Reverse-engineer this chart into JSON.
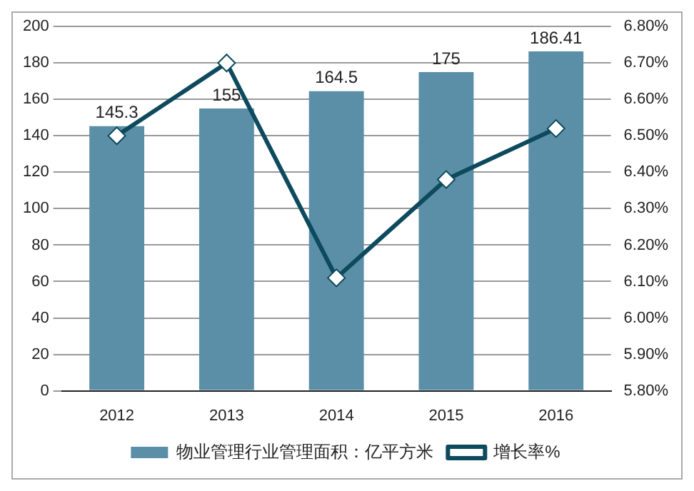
{
  "chart_data": {
    "type": "bar",
    "categories": [
      "2012",
      "2013",
      "2014",
      "2015",
      "2016"
    ],
    "series": [
      {
        "name": "物业管理行业管理面积：亿平方米",
        "color": "#5b8fa8",
        "values": [
          145.3,
          155,
          164.5,
          175,
          186.41
        ],
        "value_labels": [
          "145.3",
          "155",
          "164.5",
          "175",
          "186.41"
        ]
      },
      {
        "name": "增长率%",
        "type": "line",
        "axis": "y2",
        "color": "#0d4a5e",
        "marker": "diamond",
        "values": [
          6.5,
          6.7,
          6.11,
          6.38,
          6.52
        ]
      }
    ],
    "ylim": [
      0,
      200
    ],
    "yticks": [
      0,
      20,
      40,
      60,
      80,
      100,
      120,
      140,
      160,
      180,
      200
    ],
    "y2lim": [
      5.8,
      6.8
    ],
    "y2ticks": [
      {
        "value": 5.8,
        "label": "5.80%"
      },
      {
        "value": 5.9,
        "label": "5.90%"
      },
      {
        "value": 6.0,
        "label": "6.00%"
      },
      {
        "value": 6.1,
        "label": "6.10%"
      },
      {
        "value": 6.2,
        "label": "6.20%"
      },
      {
        "value": 6.3,
        "label": "6.30%"
      },
      {
        "value": 6.4,
        "label": "6.40%"
      },
      {
        "value": 6.5,
        "label": "6.50%"
      },
      {
        "value": 6.6,
        "label": "6.60%"
      },
      {
        "value": 6.7,
        "label": "6.70%"
      },
      {
        "value": 6.8,
        "label": "6.80%"
      }
    ],
    "grid": "y",
    "legend": "bottom"
  }
}
